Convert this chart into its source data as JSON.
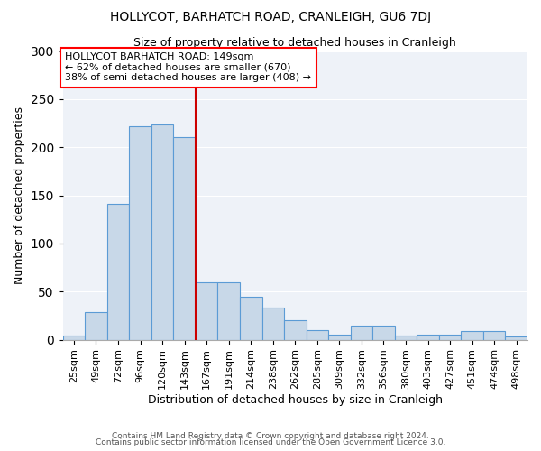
{
  "title": "HOLLYCOT, BARHATCH ROAD, CRANLEIGH, GU6 7DJ",
  "subtitle": "Size of property relative to detached houses in Cranleigh",
  "xlabel": "Distribution of detached houses by size in Cranleigh",
  "ylabel": "Number of detached properties",
  "categories": [
    "25sqm",
    "49sqm",
    "72sqm",
    "96sqm",
    "120sqm",
    "143sqm",
    "167sqm",
    "191sqm",
    "214sqm",
    "238sqm",
    "262sqm",
    "285sqm",
    "309sqm",
    "332sqm",
    "356sqm",
    "380sqm",
    "403sqm",
    "427sqm",
    "451sqm",
    "474sqm",
    "498sqm"
  ],
  "values": [
    4,
    29,
    141,
    222,
    224,
    211,
    60,
    60,
    45,
    33,
    20,
    10,
    5,
    15,
    15,
    4,
    5,
    5,
    9,
    9,
    3
  ],
  "bar_color": "#c8d8e8",
  "bar_edge_color": "#5b9bd5",
  "red_line_x": 5.5,
  "annotation_line1": "HOLLYCOT BARHATCH ROAD: 149sqm",
  "annotation_line2": "← 62% of detached houses are smaller (670)",
  "annotation_line3": "38% of semi-detached houses are larger (408) →",
  "ylim": [
    0,
    300
  ],
  "yticks": [
    0,
    50,
    100,
    150,
    200,
    250,
    300
  ],
  "background_color": "#eef2f8",
  "grid_color": "#ffffff",
  "red_line_color": "#cc0000",
  "footer_line1": "Contains HM Land Registry data © Crown copyright and database right 2024.",
  "footer_line2": "Contains public sector information licensed under the Open Government Licence 3.0."
}
